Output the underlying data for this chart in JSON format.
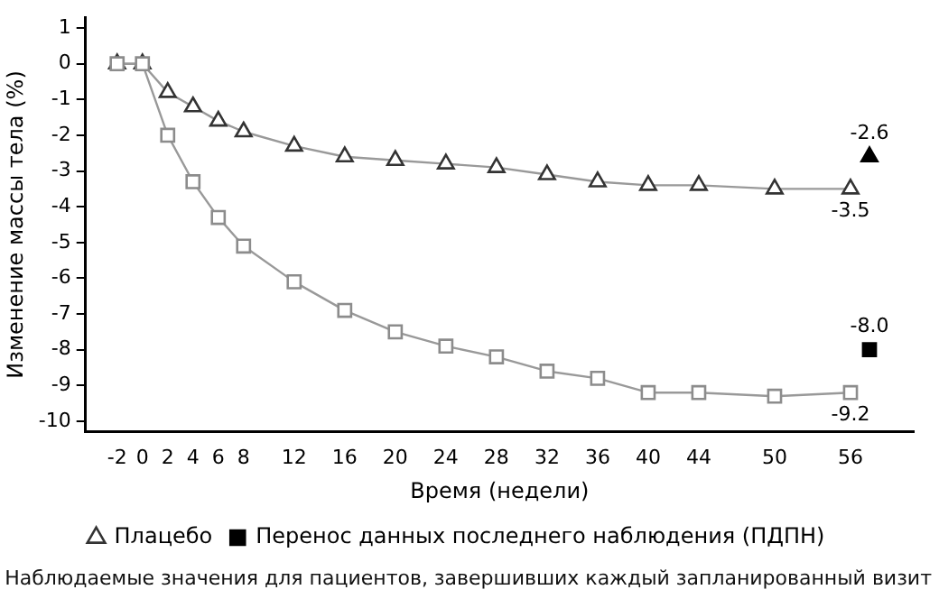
{
  "chart_data": {
    "type": "line",
    "xlabel": "Время (недели)",
    "ylabel": "Изменение массы тела (%)",
    "xlim": [
      -4.5,
      61
    ],
    "xticks": [
      -2,
      0,
      2,
      4,
      6,
      8,
      12,
      16,
      20,
      24,
      28,
      32,
      36,
      40,
      44,
      50,
      56
    ],
    "ylim": [
      -10.3,
      1.3
    ],
    "yticks": [
      1,
      0,
      -1,
      -2,
      -3,
      -4,
      -5,
      -6,
      -7,
      -8,
      -9,
      -10
    ],
    "grid": false,
    "legend": "bottom",
    "series": [
      {
        "color": "#8c8c8c",
        "marker": "square",
        "x": [
          -2,
          0,
          2,
          4,
          6,
          8,
          12,
          16,
          20,
          24,
          28,
          32,
          36,
          40,
          44,
          50,
          56
        ],
        "values": [
          0,
          0,
          -2.0,
          -3.3,
          -4.3,
          -5.1,
          -6.1,
          -6.9,
          -7.5,
          -7.9,
          -8.2,
          -8.6,
          -8.8,
          -9.2,
          -9.2,
          -9.3,
          -9.2
        ],
        "value_labels": [
          null,
          null,
          null,
          null,
          null,
          null,
          null,
          null,
          null,
          null,
          null,
          null,
          null,
          null,
          null,
          null,
          "-9.2"
        ]
      },
      {
        "name": "Плацебо",
        "color": "#333333",
        "marker": "triangle",
        "x": [
          -2,
          0,
          2,
          4,
          6,
          8,
          12,
          16,
          20,
          24,
          28,
          32,
          36,
          40,
          44,
          50,
          56
        ],
        "values": [
          0,
          0,
          -0.8,
          -1.2,
          -1.6,
          -1.9,
          -2.3,
          -2.6,
          -2.7,
          -2.8,
          -2.9,
          -3.1,
          -3.3,
          -3.4,
          -3.4,
          -3.5,
          -3.5
        ],
        "value_labels": [
          null,
          null,
          null,
          null,
          null,
          null,
          null,
          null,
          null,
          null,
          null,
          null,
          null,
          null,
          null,
          null,
          "-3.5"
        ]
      },
      {
        "type": "scatter",
        "name": "Перенос данных последнего наблюдения (ПДПН)",
        "color": "#000000",
        "marker": "square",
        "x": [
          57.5
        ],
        "values": [
          -8.0
        ],
        "value_labels": [
          "-8.0"
        ]
      },
      {
        "type": "scatter",
        "color": "#000000",
        "marker": "triangle",
        "x": [
          57.5
        ],
        "values": [
          -2.6
        ],
        "value_labels": [
          "-2.6"
        ]
      }
    ],
    "annotations": [
      "Наблюдаемые значения для пациентов, завершивших каждый запланированный визит"
    ]
  }
}
